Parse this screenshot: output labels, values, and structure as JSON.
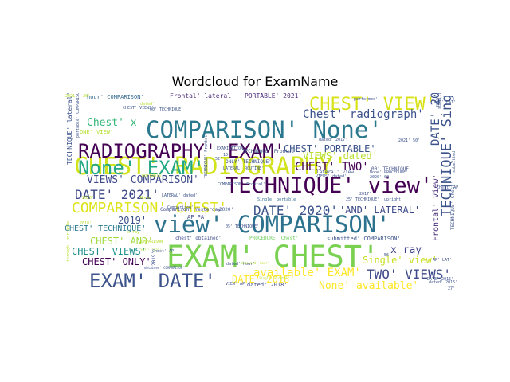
{
  "chart_data": {
    "type": "wordcloud",
    "title": "Wordcloud for ExamName",
    "words": [
      {
        "text": "EXAM' CHEST'",
        "c": "#7ad151"
      },
      {
        "text": "CHEST' RADIOGRAPHY'",
        "c": "#d2e21b"
      },
      {
        "text": "COMPARISON' None'",
        "c": "#2a788e"
      },
      {
        "text": "view' COMPARISON'",
        "c": "#2c728e"
      },
      {
        "text": "TECHNIQUE' view'",
        "c": "#440154"
      },
      {
        "text": "RADIOGRAPHY' EXAM'",
        "c": "#440154"
      },
      {
        "text": "None' EXAM'",
        "c": "#22a884"
      },
      {
        "text": "EXAM' DATE'",
        "c": "#3b528b"
      },
      {
        "text": "CHEST' VIEW'",
        "c": "#d8e219"
      },
      {
        "text": "COMPARISON' CHEST'",
        "c": "#dde318"
      },
      {
        "text": "DATE' 2021'",
        "c": "#3e4a89"
      },
      {
        "text": "DATE' 2020'",
        "c": "#3b528b"
      },
      {
        "text": "TWO' VIEWS'",
        "c": "#3e4a89"
      },
      {
        "text": "TECHNIQUE' Single'",
        "c": "#3b528b"
      },
      {
        "text": "Chest' radiograph'",
        "c": "#3b528b"
      },
      {
        "text": "CHEST' TWO'",
        "c": "#440154"
      },
      {
        "text": "VIEWS' COMPARISON'",
        "c": "#3e4a89"
      },
      {
        "text": "available' EXAM'",
        "c": "#fde725"
      },
      {
        "text": "DATE' 2018'",
        "c": "#fde725"
      },
      {
        "text": "None' available'",
        "c": "#fde725"
      },
      {
        "text": "DATE' 2019'",
        "c": "#3b528b"
      },
      {
        "text": "Single' view'",
        "c": "#c8e020"
      },
      {
        "text": "VIEWS' dated'",
        "c": "#b5de2b"
      },
      {
        "text": "x ray",
        "c": "#414487"
      },
      {
        "text": "CHEST' PORTABLE'",
        "c": "#3b528b"
      },
      {
        "text": "Chest' x",
        "c": "#35b779"
      },
      {
        "text": "CHEST' VIEWS'",
        "c": "#21918c"
      },
      {
        "text": "CHEST' ONLY'",
        "c": "#440154"
      },
      {
        "text": "CHEST' AND'",
        "c": "#9fda3a"
      },
      {
        "text": "2019'",
        "c": "#3b528b"
      },
      {
        "text": "CHEST' TECHNIQUE'",
        "c": "#2a788e"
      },
      {
        "text": "'AND' LATERAL'",
        "c": "#3e4a89"
      },
      {
        "text": "Frontal' view'",
        "c": "#472d7b"
      },
      {
        "text": "Frontal' lateral'",
        "c": "#482878"
      },
      {
        "text": "PORTABLE' 2021'",
        "c": "#482878"
      },
      {
        "text": "hour' COMPARISON'",
        "c": "#31688e"
      },
      {
        "text": "TECHNIQUE' lateral'",
        "c": "#3b528b"
      },
      {
        "text": "ONE' VIEW'",
        "c": "#b5de2b"
      },
      {
        "text": "AP PA'",
        "c": "#3e4a89"
      },
      {
        "text": "chest' obtained'",
        "c": "#3e4a89"
      },
      {
        "text": "submitted' COMPARISON'",
        "c": "#3b528b"
      },
      {
        "text": "PROCEDURE' Chest'",
        "c": "#6ece58"
      },
      {
        "text": "dated' 2018'",
        "c": "#3e4a89"
      },
      {
        "text": "TECHNIQUE' Frontal'",
        "c": "#3b528b"
      },
      {
        "text": "lateral' view'",
        "c": "#3b528b"
      },
      {
        "text": "ONLY' TECHNIQUE'",
        "c": "#3b528b"
      },
      {
        "text": "00' TECHNIQUE'",
        "c": "#3e4a89"
      },
      {
        "text": "Comparison' Yesterday",
        "c": "#3e4a89"
      },
      {
        "text": "TECHNIQUE' Chest'",
        "c": "#3b528b"
      },
      {
        "text": "2017'",
        "c": "#3e4a89"
      },
      {
        "text": "25' TECHNIQUE'",
        "c": "#3b528b"
      },
      {
        "text": "EXAMINATION",
        "c": "#3b528b"
      },
      {
        "text": "LATERAL' ROUTINE'",
        "c": "#3b528b"
      },
      {
        "text": "DATE' 2015'",
        "c": "#3b528b"
      },
      {
        "text": "dated' 2015'",
        "c": "#3b528b"
      },
      {
        "text": "dated' 2017'",
        "c": "#3b528b"
      },
      {
        "text": "2021' 50'",
        "c": "#3b528b"
      },
      {
        "text": "2020' 00'",
        "c": "#3b528b"
      },
      {
        "text": "performed'",
        "c": "#3b528b"
      },
      {
        "text": "Single' portable",
        "c": "#31688e"
      },
      {
        "text": "Single' Frontal'",
        "c": "#b5de2b"
      },
      {
        "text": "obtained' hour'",
        "c": "#b5de2b"
      },
      {
        "text": "None' PROCEDURE'",
        "c": "#3b528b"
      },
      {
        "text": "upright",
        "c": "#3b528b"
      },
      {
        "text": "56'",
        "c": "#3b528b"
      },
      {
        "text": "27'",
        "c": "#3b528b"
      },
      {
        "text": "Comparison'",
        "c": "#3b528b"
      },
      {
        "text": "submitted",
        "c": "#3b528b"
      },
      {
        "text": "2021'",
        "c": "#b5de2b"
      },
      {
        "text": "20'",
        "c": "#b5de2b"
      },
      {
        "text": "Chest' AP",
        "c": "#3b528b"
      },
      {
        "text": "through' portable",
        "c": "#b5de2b"
      },
      {
        "text": "portable' COMPARISON",
        "c": "#3b528b"
      },
      {
        "text": "2019' TECHNIQUE'",
        "c": "#3b528b"
      },
      {
        "text": "dated' hour'",
        "c": "#3b528b"
      },
      {
        "text": "LATERAL' dated'",
        "c": "#3b528b"
      },
      {
        "text": "VIEWS' dated'",
        "c": "#3b528b"
      },
      {
        "text": "05' TECHNIQUE'",
        "c": "#3b528b"
      },
      {
        "text": "00' TECHNIQUE'",
        "c": "#3b528b"
      },
      {
        "text": "CHEST' VIEWS'",
        "c": "#3b528b"
      },
      {
        "text": "VIEW' AP",
        "c": "#3b528b"
      },
      {
        "text": "2021' 2021'",
        "c": "#b5de2b"
      },
      {
        "text": "2020'",
        "c": "#b5de2b"
      },
      {
        "text": "2018'",
        "c": "#b5de2b"
      },
      {
        "text": "AP' LAT'",
        "c": "#3b528b"
      },
      {
        "text": "AND' LAT'",
        "c": "#3b528b"
      },
      {
        "text": "x ray",
        "c": "#b5de2b"
      },
      {
        "text": "COMPARISON",
        "c": "#b5de2b"
      },
      {
        "text": "portable",
        "c": "#b5de2b"
      },
      {
        "text": "dated'",
        "c": "#b5de2b"
      },
      {
        "text": "None'",
        "c": "#b5de2b"
      },
      {
        "text": "obtained' COMPARISON'",
        "c": "#3b528b"
      },
      {
        "text": "Chest' AP",
        "c": "#3b528b"
      },
      {
        "text": "2019'",
        "c": "#3b528b"
      },
      {
        "text": "10'",
        "c": "#3b528b"
      },
      {
        "text": "52'",
        "c": "#3b528b"
      },
      {
        "text": "2020'",
        "c": "#3b528b"
      },
      {
        "text": "COMPARISON' Frontal'",
        "c": "#3b528b"
      },
      {
        "text": "TECHNIQUE' Frontal'",
        "c": "#3b528b"
      },
      {
        "text": "submitted",
        "c": "#3b528b"
      }
    ]
  }
}
